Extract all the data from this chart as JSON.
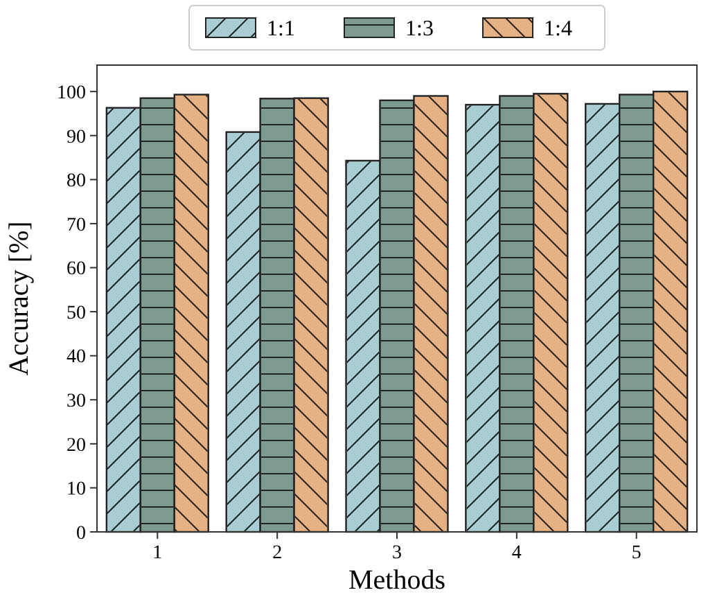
{
  "chart_data": {
    "type": "bar",
    "xlabel": "Methods",
    "ylabel": "Accuracy [%]",
    "categories": [
      "1",
      "2",
      "3",
      "4",
      "5"
    ],
    "series": [
      {
        "name": "1:1",
        "color": "#a8cdd3",
        "values": [
          96.3,
          90.8,
          84.3,
          97.0,
          97.2
        ]
      },
      {
        "name": "1:3",
        "color": "#7d9a8f",
        "values": [
          98.5,
          98.4,
          98.0,
          99.0,
          99.3
        ]
      },
      {
        "name": "1:4",
        "color": "#e5b084",
        "values": [
          99.3,
          98.5,
          99.0,
          99.5,
          100.0
        ]
      }
    ],
    "ylim": [
      0,
      106
    ],
    "yticks": [
      0,
      10,
      20,
      30,
      40,
      50,
      60,
      70,
      80,
      90,
      100
    ],
    "legend": "top",
    "grid": false
  }
}
